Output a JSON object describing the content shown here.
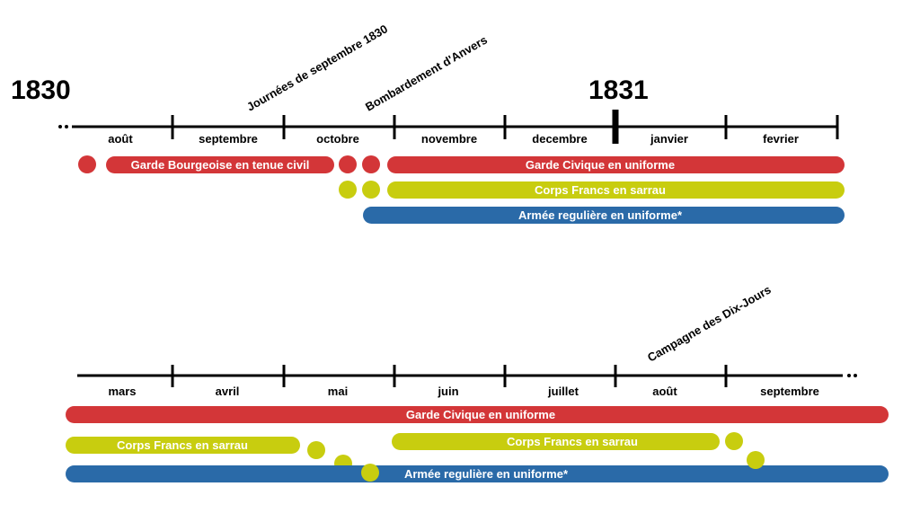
{
  "colors": {
    "red": "#d33638",
    "yellow": "#c8cd0f",
    "blue": "#2a6aa8",
    "line": "#000000"
  },
  "years": {
    "y1830": "1830",
    "y1831": "1831"
  },
  "events": {
    "journees": "Journées de septembre 1830",
    "bombardement": "Bombardement d'Anvers",
    "campagne": "Campagne des Dix-Jours"
  },
  "row1": {
    "months": [
      "août",
      "septembre",
      "octobre",
      "novembre",
      "decembre",
      "janvier",
      "fevrier"
    ],
    "bars": {
      "garde_bourgeoise": "Garde Bourgeoise en tenue civil",
      "garde_civique": "Garde Civique en uniforme",
      "corps_francs": "Corps Francs en sarrau",
      "armee": "Armée regulière en uniforme*"
    }
  },
  "row2": {
    "months": [
      "mars",
      "avril",
      "mai",
      "juin",
      "juillet",
      "août",
      "septembre"
    ],
    "bars": {
      "garde_civique": "Garde Civique en uniforme",
      "corps_francs_a": "Corps Francs en sarrau",
      "corps_francs_b": "Corps Francs en sarrau",
      "armee": "Armée regulière en uniforme*"
    }
  }
}
